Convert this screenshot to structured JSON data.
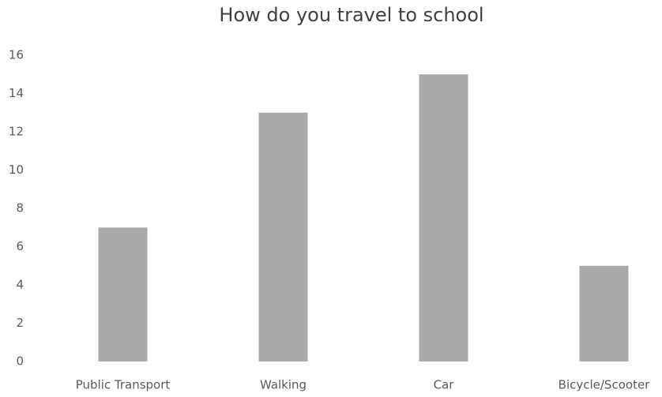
{
  "chart_data": {
    "type": "bar",
    "title": "How do you travel to school",
    "categories": [
      "Public Transport",
      "Walking",
      "Car",
      "Bicycle/Scooter"
    ],
    "values": [
      7,
      13,
      15,
      5
    ],
    "color": "#a9a9a9",
    "ylim": [
      0,
      16
    ],
    "yticks": [
      0,
      2,
      4,
      6,
      8,
      10,
      12,
      14,
      16
    ],
    "grid": false
  }
}
